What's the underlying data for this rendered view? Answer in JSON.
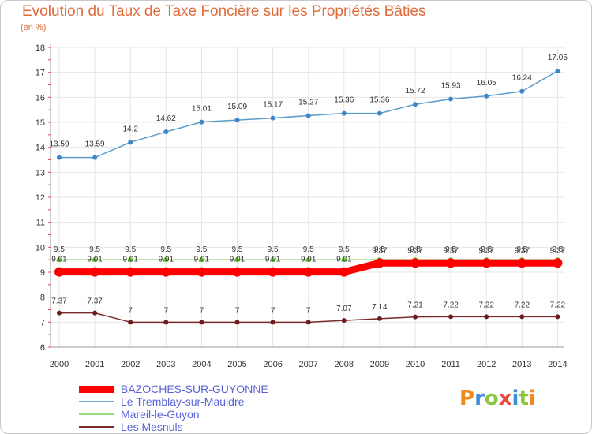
{
  "chart_data": {
    "type": "line",
    "title": "Evolution du Taux de Taxe Foncière sur les Propriétés Bâties",
    "ylabel": "(en %)",
    "xlabel": "",
    "ylim": [
      6,
      18
    ],
    "yticks": [
      "6",
      "7",
      "8",
      "9",
      "10",
      "11",
      "12",
      "13",
      "14",
      "15",
      "16",
      "17",
      "18"
    ],
    "categories": [
      "2000",
      "2001",
      "2002",
      "2003",
      "2004",
      "2005",
      "2006",
      "2007",
      "2008",
      "2009",
      "2010",
      "2011",
      "2012",
      "2013",
      "2014"
    ],
    "series": [
      {
        "name": "BAZOCHES-SUR-GUYONNE",
        "color": "#ff0000",
        "values": [
          9.01,
          9.01,
          9.01,
          9.01,
          9.01,
          9.01,
          9.01,
          9.01,
          9.01,
          9.37,
          9.37,
          9.37,
          9.37,
          9.37,
          9.37
        ],
        "labels": [
          "9.01",
          "9.01",
          "9.01",
          "9.01",
          "9.01",
          "9.01",
          "9.01",
          "9.01",
          "9.01",
          "9.37",
          "9.37",
          "9.37",
          "9.37",
          "9.37",
          "9.37"
        ]
      },
      {
        "name": "Le Tremblay-sur-Mauldre",
        "color": "#6aaed6",
        "values": [
          13.59,
          13.59,
          14.2,
          14.62,
          15.01,
          15.09,
          15.17,
          15.27,
          15.36,
          15.36,
          15.72,
          15.93,
          16.05,
          16.24,
          17.05
        ],
        "labels": [
          "13.59",
          "13.59",
          "14.2",
          "14.62",
          "15.01",
          "15.09",
          "15.17",
          "15.27",
          "15.36",
          "15.36",
          "15.72",
          "15.93",
          "16.05",
          "16.24",
          "17.05"
        ]
      },
      {
        "name": "Mareil-le-Guyon",
        "color": "#99dd77",
        "values": [
          9.5,
          9.5,
          9.5,
          9.5,
          9.5,
          9.5,
          9.5,
          9.5,
          9.5,
          9.5,
          9.5,
          9.5,
          9.5,
          9.5,
          9.5
        ],
        "labels": [
          "9.5",
          "9.5",
          "9.5",
          "9.5",
          "9.5",
          "9.5",
          "9.5",
          "9.5",
          "9.5",
          "9.5",
          "9.5",
          "9.5",
          "9.5",
          "9.5",
          "9.5"
        ]
      },
      {
        "name": "Les Mesnuls",
        "color": "#7a2a2a",
        "values": [
          7.37,
          7.37,
          7,
          7,
          7,
          7,
          7,
          7,
          7.07,
          7.14,
          7.21,
          7.22,
          7.22,
          7.22,
          7.22
        ],
        "labels": [
          "7.37",
          "7.37",
          "7",
          "7",
          "7",
          "7",
          "7",
          "7",
          "7.07",
          "7.14",
          "7.21",
          "7.22",
          "7.22",
          "7.22",
          "7.22"
        ]
      }
    ]
  },
  "logo": {
    "text": "Proxiti"
  }
}
